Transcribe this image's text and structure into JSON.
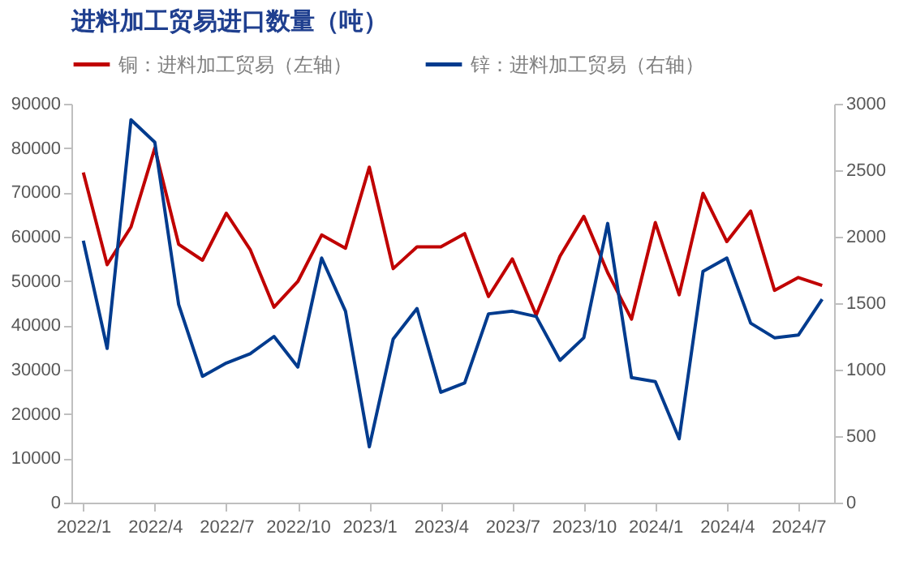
{
  "chart_data": {
    "type": "line",
    "title": "进料加工贸易进口数量（吨）",
    "categories": [
      "2022/1",
      null,
      null,
      "2022/4",
      null,
      null,
      "2022/7",
      null,
      null,
      "2022/10",
      null,
      null,
      "2023/1",
      null,
      null,
      "2023/4",
      null,
      null,
      "2023/7",
      null,
      null,
      "2023/10",
      null,
      null,
      "2024/1",
      null,
      null,
      "2024/4",
      null,
      null,
      "2024/7",
      null
    ],
    "series": [
      {
        "name": "铜：进料加工贸易（左轴）",
        "color": "#c00000",
        "values": [
          74500,
          53700,
          62200,
          80000,
          58300,
          54700,
          65300,
          57100,
          44100,
          49900,
          60400,
          57400,
          75700,
          52800,
          57700,
          57700,
          60700,
          46500,
          55000,
          42300,
          55600,
          64600,
          51900,
          41400,
          63200,
          46900,
          69800,
          58900,
          65800,
          47900,
          50800,
          49000
        ]
      },
      {
        "name": "锌：进料加工贸易（右轴）",
        "color": "#003b8e",
        "axis": "y2",
        "values": [
          1970,
          1160,
          2880,
          2710,
          1490,
          950,
          1050,
          1120,
          1250,
          1020,
          1840,
          1440,
          420,
          1230,
          1460,
          830,
          900,
          1420,
          1440,
          1400,
          1070,
          1240,
          2100,
          940,
          910,
          480,
          1740,
          1840,
          1350,
          1240,
          1260,
          1530
        ]
      }
    ],
    "ylim": [
      0,
      90000
    ],
    "yticks": [
      0,
      10000,
      20000,
      30000,
      40000,
      50000,
      60000,
      70000,
      80000,
      90000
    ],
    "y2lim": [
      0,
      3000
    ],
    "y2ticks": [
      0,
      500,
      1000,
      1500,
      2000,
      2500,
      3000
    ],
    "grid": false,
    "legend": "top"
  }
}
